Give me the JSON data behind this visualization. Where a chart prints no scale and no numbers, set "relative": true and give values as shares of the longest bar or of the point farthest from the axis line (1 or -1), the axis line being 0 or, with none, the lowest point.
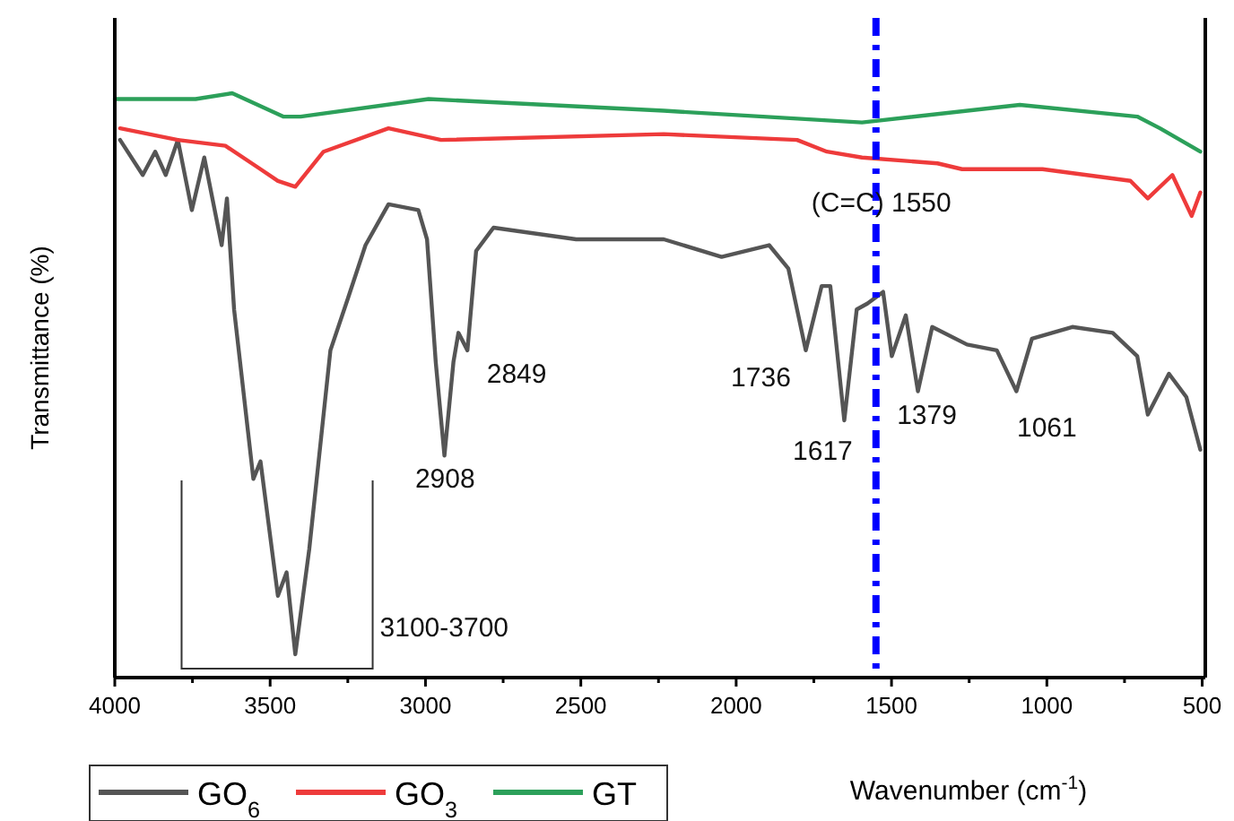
{
  "chart_data": {
    "type": "line",
    "relative": true,
    "xlabel": "Wavenumber (cm$^{-1}$)",
    "ylabel": "Transmittance (%)",
    "legend": "bottom left",
    "xlim": [
      4000,
      490
    ],
    "xticks": [
      4000,
      {
        "value": 3750,
        "label": null
      },
      3500,
      {
        "value": 3250,
        "label": null
      },
      3000,
      {
        "value": 2750,
        "label": null
      },
      2500,
      {
        "value": 2250,
        "label": null
      },
      2000,
      {
        "value": 1750,
        "label": null
      },
      1500,
      {
        "value": 1250,
        "label": null
      },
      1000,
      {
        "value": 750,
        "label": null
      },
      500
    ],
    "series": [
      {
        "name": "GO$_{6}$",
        "color": "#555555",
        "x": [
          3983,
          3910,
          3870,
          3836,
          3797,
          3752,
          3712,
          3656,
          3639,
          3616,
          3571,
          3554,
          3531,
          3475,
          3447,
          3419,
          3374,
          3306,
          3249,
          3193,
          3119,
          3023,
          2995,
          2967,
          2939,
          2910,
          2894,
          2865,
          2837,
          2781,
          2515,
          2233,
          2047,
          1894,
          1832,
          1776,
          1725,
          1697,
          1652,
          1612,
          1578,
          1527,
          1499,
          1454,
          1415,
          1369,
          1257,
          1161,
          1098,
          1048,
          918,
          788,
          709,
          675,
          607,
          551,
          506
        ],
        "values": [
          0.92,
          0.86,
          0.9,
          0.86,
          0.92,
          0.8,
          0.89,
          0.74,
          0.82,
          0.63,
          0.42,
          0.34,
          0.37,
          0.14,
          0.18,
          0.04,
          0.22,
          0.56,
          0.65,
          0.74,
          0.81,
          0.8,
          0.75,
          0.54,
          0.38,
          0.54,
          0.59,
          0.56,
          0.73,
          0.77,
          0.75,
          0.75,
          0.72,
          0.74,
          0.7,
          0.56,
          0.67,
          0.67,
          0.44,
          0.63,
          0.64,
          0.66,
          0.55,
          0.62,
          0.49,
          0.6,
          0.57,
          0.56,
          0.49,
          0.58,
          0.6,
          0.59,
          0.55,
          0.45,
          0.52,
          0.48,
          0.39
        ]
      },
      {
        "name": "GO$_{3}$",
        "color": "#ee3b3b",
        "x": [
          3983,
          3797,
          3644,
          3531,
          3475,
          3419,
          3328,
          3119,
          2950,
          2233,
          1804,
          1708,
          1595,
          1352,
          1273,
          1014,
          731,
          675,
          596,
          534,
          506
        ],
        "values": [
          0.94,
          0.92,
          0.91,
          0.87,
          0.85,
          0.84,
          0.9,
          0.94,
          0.92,
          0.93,
          0.92,
          0.9,
          0.89,
          0.88,
          0.87,
          0.87,
          0.85,
          0.82,
          0.86,
          0.79,
          0.83
        ]
      },
      {
        "name": "GT",
        "color": "#2ca05a",
        "x": [
          4000,
          3740,
          3622,
          3458,
          3402,
          2990,
          2233,
          1595,
          1087,
          709,
          636,
          506
        ],
        "values": [
          0.99,
          0.99,
          1,
          0.96,
          0.96,
          0.99,
          0.97,
          0.95,
          0.98,
          0.96,
          0.94,
          0.9
        ]
      }
    ],
    "ref_lines": [
      {
        "axis": "x",
        "value": 1550,
        "label": "(C=C) 1550",
        "color": "#0000ff",
        "line_style": "dashdot"
      }
    ],
    "annotations": [
      {
        "text": "2908",
        "x": 2908,
        "y": 0.38
      },
      {
        "text": "2849",
        "x": 2849,
        "y": 0.56
      },
      {
        "text": "1736",
        "x": 1776,
        "y": 0.56
      },
      {
        "text": "1617",
        "x": 1652,
        "y": 0.44
      },
      {
        "text": "1379",
        "x": 1415,
        "y": 0.49
      },
      {
        "text": "1061",
        "x": 1098,
        "y": 0.49
      },
      "3100-3700"
    ]
  }
}
